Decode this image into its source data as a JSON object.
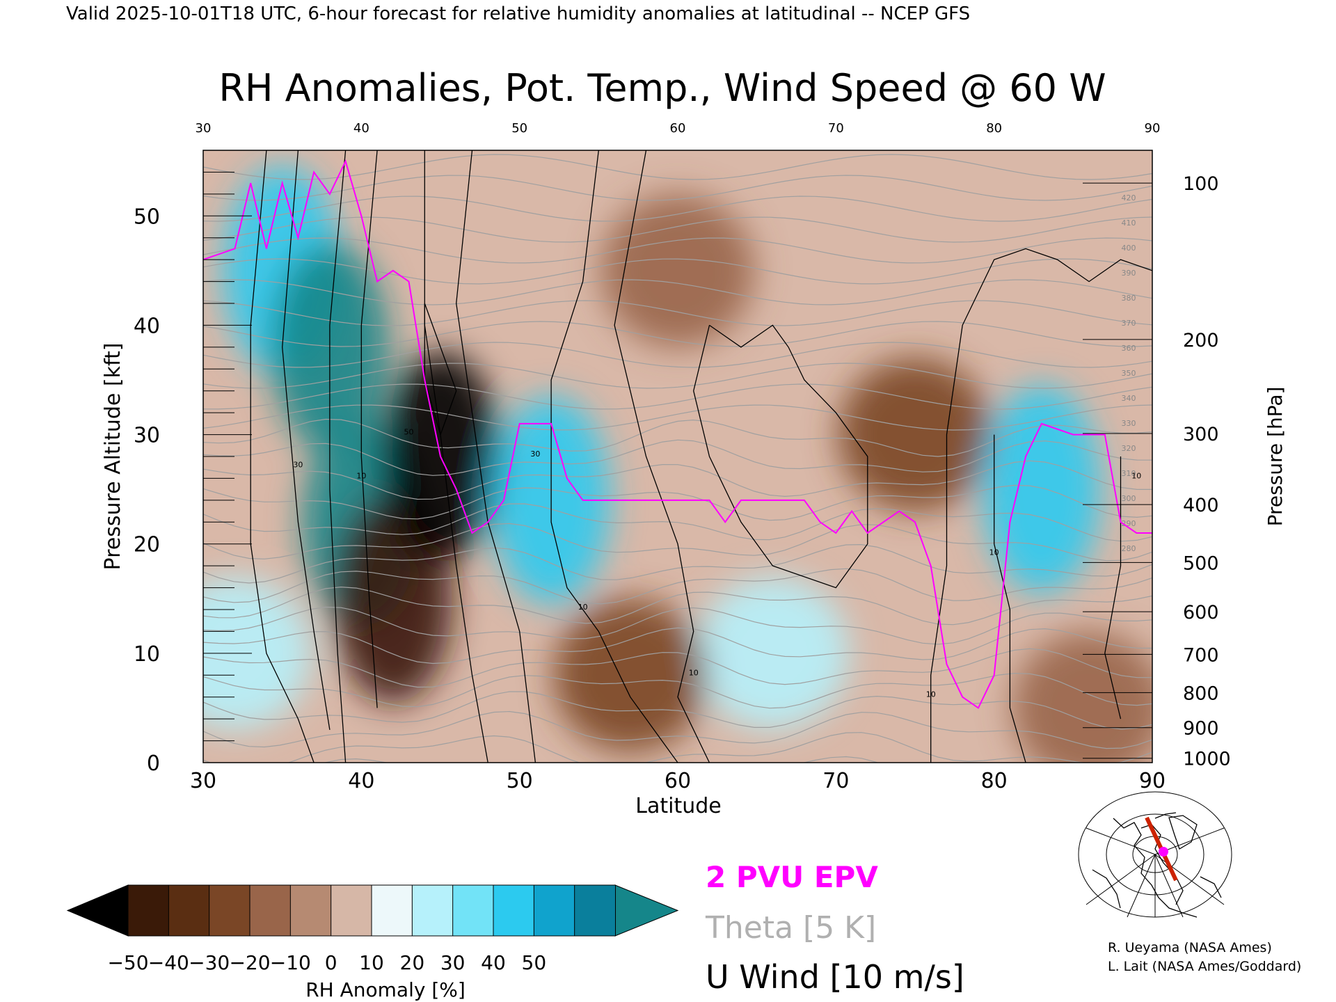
{
  "header": {
    "valid_line": "Valid 2025-10-01T18 UTC, 6-hour forecast for relative humidity anomalies at latitudinal -- NCEP GFS",
    "title": "RH Anomalies, Pot. Temp., Wind Speed @ 60 W"
  },
  "chart_data": {
    "type": "heatmap",
    "title": "RH Anomalies, Pot. Temp., Wind Speed @ 60 W",
    "xlabel": "Latitude",
    "ylabel": "Pressure Altitude [kft]",
    "y2label": "Pressure [hPa]",
    "xlim": [
      30,
      90
    ],
    "ylim": [
      0,
      56
    ],
    "x_ticks": [
      "30",
      "40",
      "50",
      "60",
      "70",
      "80",
      "90"
    ],
    "y_ticks": [
      "0",
      "10",
      "20",
      "30",
      "40",
      "50"
    ],
    "pressure_ticks": [
      {
        "label": "100",
        "kft": 53.0
      },
      {
        "label": "200",
        "kft": 38.7
      },
      {
        "label": "300",
        "kft": 30.1
      },
      {
        "label": "400",
        "kft": 23.6
      },
      {
        "label": "500",
        "kft": 18.3
      },
      {
        "label": "600",
        "kft": 13.8
      },
      {
        "label": "700",
        "kft": 9.9
      },
      {
        "label": "800",
        "kft": 6.4
      },
      {
        "label": "900",
        "kft": 3.2
      },
      {
        "label": "1000",
        "kft": 0.4
      }
    ],
    "colorbar": {
      "label": "RH Anomaly [%]",
      "tick_labels": [
        "−50",
        "−40",
        "−30",
        "−20",
        "−10",
        "0",
        "10",
        "20",
        "30",
        "40",
        "50"
      ],
      "colors": [
        "#3a1a08",
        "#5a2e12",
        "#7a4626",
        "#99654a",
        "#b68a72",
        "#d6b7a7",
        "#edf8fa",
        "#b6f1fb",
        "#72e3f7",
        "#2ccaef",
        "#10a3cd",
        "#0a7f9c"
      ],
      "under_color": "#000000",
      "over_color": "#15868a"
    },
    "legend": [
      {
        "label": "2 PVU EPV",
        "color": "#ff00ff"
      },
      {
        "label": "Theta [5 K]",
        "color": "#b0b0b0"
      },
      {
        "label": "U Wind [10 m/s]",
        "color": "#000000"
      }
    ],
    "theta_labels": [
      "420",
      "410",
      "400",
      "390",
      "380",
      "370",
      "360",
      "350",
      "340",
      "330",
      "320",
      "310",
      "300",
      "290",
      "280"
    ],
    "wind_labels": [
      "10",
      "30",
      "50"
    ],
    "pv2_line": [
      [
        30,
        46
      ],
      [
        32,
        47
      ],
      [
        33,
        53
      ],
      [
        34,
        47
      ],
      [
        35,
        53
      ],
      [
        36,
        48
      ],
      [
        37,
        54
      ],
      [
        38,
        52
      ],
      [
        39,
        55
      ],
      [
        40,
        50
      ],
      [
        41,
        44
      ],
      [
        42,
        45
      ],
      [
        43,
        44
      ],
      [
        44,
        35
      ],
      [
        45,
        28
      ],
      [
        46,
        25
      ],
      [
        47,
        21
      ],
      [
        48,
        22
      ],
      [
        49,
        24
      ],
      [
        50,
        31
      ],
      [
        52,
        31
      ],
      [
        53,
        26
      ],
      [
        54,
        24
      ],
      [
        56,
        24
      ],
      [
        58,
        24
      ],
      [
        60,
        24
      ],
      [
        62,
        24
      ],
      [
        63,
        22
      ],
      [
        64,
        24
      ],
      [
        66,
        24
      ],
      [
        68,
        24
      ],
      [
        69,
        22
      ],
      [
        70,
        21
      ],
      [
        71,
        23
      ],
      [
        72,
        21
      ],
      [
        73,
        22
      ],
      [
        74,
        23
      ],
      [
        75,
        22
      ],
      [
        76,
        18
      ],
      [
        77,
        9
      ],
      [
        78,
        6
      ],
      [
        79,
        5
      ],
      [
        80,
        8
      ],
      [
        81,
        22
      ],
      [
        82,
        28
      ],
      [
        83,
        31
      ],
      [
        85,
        30
      ],
      [
        87,
        30
      ],
      [
        88,
        22
      ],
      [
        89,
        21
      ],
      [
        90,
        21
      ]
    ],
    "rh_anomaly_field": [
      {
        "lat": 32,
        "kft": 10,
        "value": 20
      },
      {
        "lat": 35,
        "kft": 45,
        "value": 45
      },
      {
        "lat": 38,
        "kft": 38,
        "value": 60
      },
      {
        "lat": 40,
        "kft": 22,
        "value": 50
      },
      {
        "lat": 42,
        "kft": 15,
        "value": -45
      },
      {
        "lat": 45,
        "kft": 28,
        "value": -55
      },
      {
        "lat": 52,
        "kft": 24,
        "value": 45
      },
      {
        "lat": 60,
        "kft": 45,
        "value": -18
      },
      {
        "lat": 75,
        "kft": 30,
        "value": -30
      },
      {
        "lat": 83,
        "kft": 25,
        "value": 45
      },
      {
        "lat": 66,
        "kft": 10,
        "value": 20
      },
      {
        "lat": 57,
        "kft": 8,
        "value": -25
      },
      {
        "lat": 86,
        "kft": 5,
        "value": -20
      }
    ]
  },
  "credits": {
    "line1": "R. Ueyama (NASA Ames)",
    "line2": "L. Lait (NASA Ames/Goddard)"
  },
  "inset": {
    "line_color": "#cc2200",
    "marker_color": "#ff00ff"
  }
}
